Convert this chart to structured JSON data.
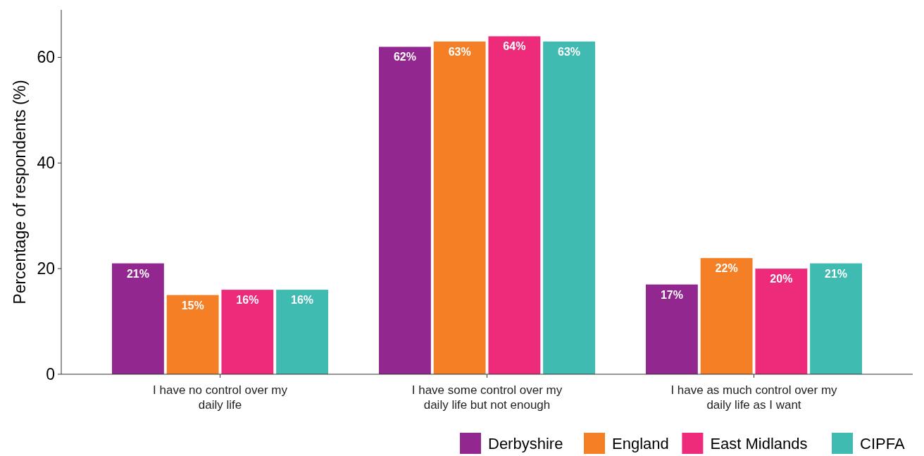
{
  "chart_data": {
    "type": "bar",
    "ylabel": "Percentage of respondents (%)",
    "categories": [
      "I have no control over my daily life",
      "I have some control over my daily life but not enough",
      "I have as much control over my daily life as I want"
    ],
    "series": [
      {
        "name": "Derbyshire",
        "color": "#92278f",
        "values": [
          21,
          62,
          17
        ],
        "value_labels": [
          "21%",
          "62%",
          "17%"
        ]
      },
      {
        "name": "England",
        "color": "#f47f24",
        "values": [
          15,
          63,
          22
        ],
        "value_labels": [
          "15%",
          "63%",
          "22%"
        ]
      },
      {
        "name": "East Midlands",
        "color": "#ee2a7b",
        "values": [
          16,
          64,
          20
        ],
        "value_labels": [
          "16%",
          "64%",
          "20%"
        ]
      },
      {
        "name": "CIPFA",
        "color": "#40bbb1",
        "values": [
          16,
          63,
          21
        ],
        "value_labels": [
          "16%",
          "63%",
          "21%"
        ]
      }
    ],
    "ylim": [
      0,
      69
    ],
    "yticks": [
      0,
      20,
      40,
      60
    ],
    "grid": false,
    "legend": "bottom right"
  }
}
